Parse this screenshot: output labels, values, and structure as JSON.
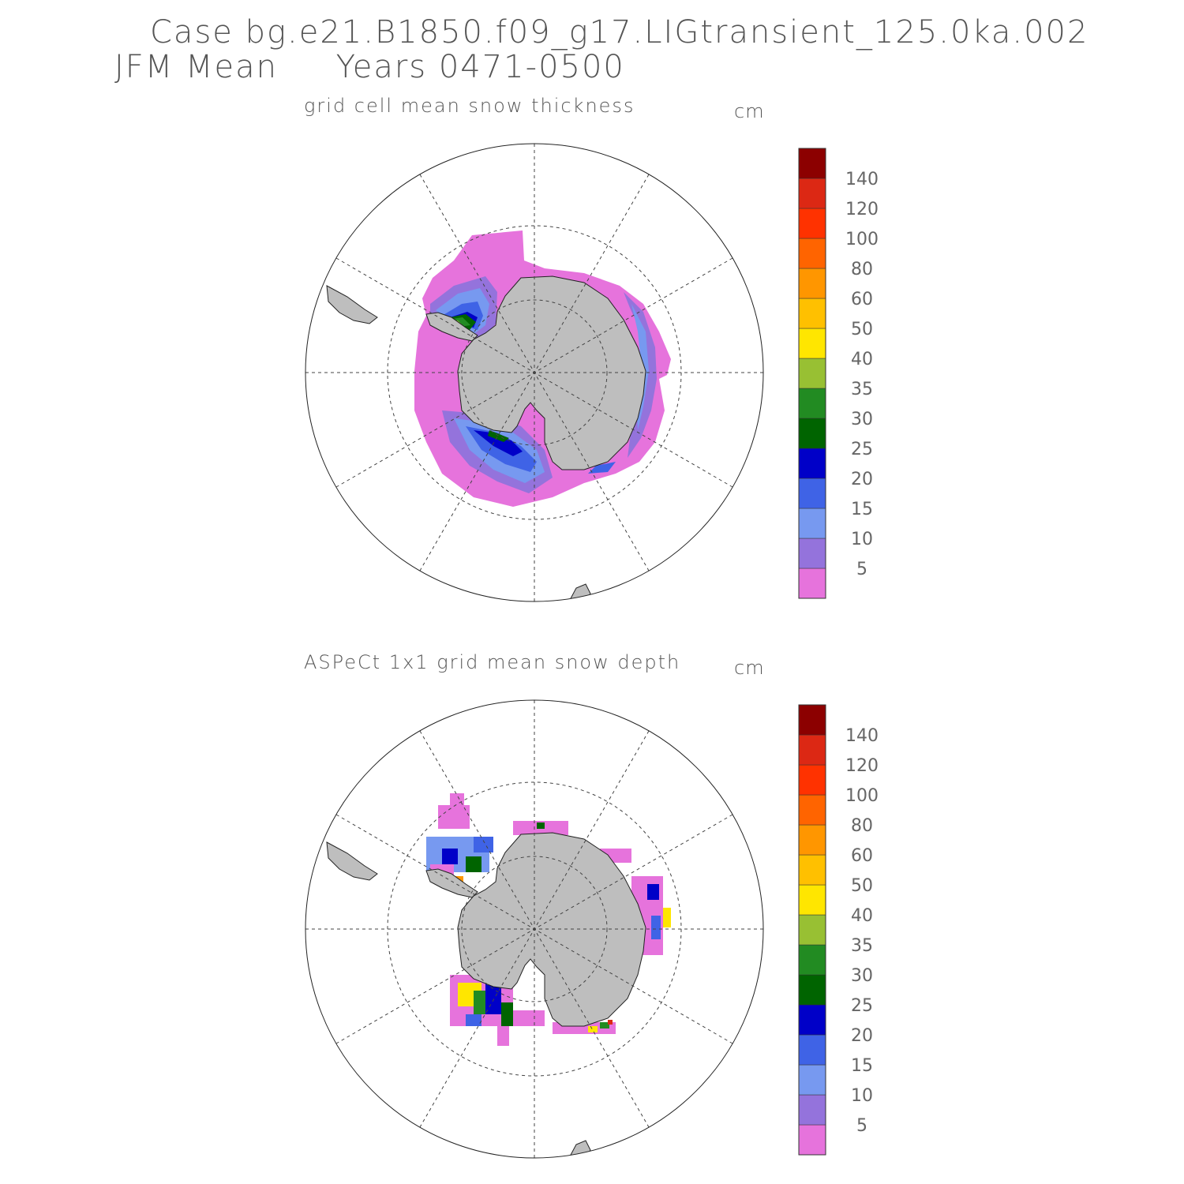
{
  "title_line1": "Case bg.e21.B1850.f09_g17.LIGtransient_125.0ka.002",
  "title_line2": "JFM Mean     Years 0471-0500",
  "panels": [
    {
      "title": "grid cell mean snow thickness",
      "unit": "cm"
    },
    {
      "title": "ASPeCt 1x1 grid mean snow depth",
      "unit": "cm"
    }
  ],
  "colorbar": {
    "labels": [
      "5",
      "10",
      "15",
      "20",
      "25",
      "30",
      "35",
      "40",
      "50",
      "60",
      "80",
      "100",
      "120",
      "140"
    ],
    "colors": [
      "#e673dc",
      "#9473dc",
      "#7799f0",
      "#3f63e6",
      "#0000c8",
      "#006400",
      "#228b22",
      "#98c033",
      "#ffe600",
      "#ffc000",
      "#ff9600",
      "#ff6400",
      "#ff3200",
      "#dc2814",
      "#8c0000"
    ]
  },
  "map_colors": {
    "land": "#bebebe",
    "grid": "#444444"
  }
}
